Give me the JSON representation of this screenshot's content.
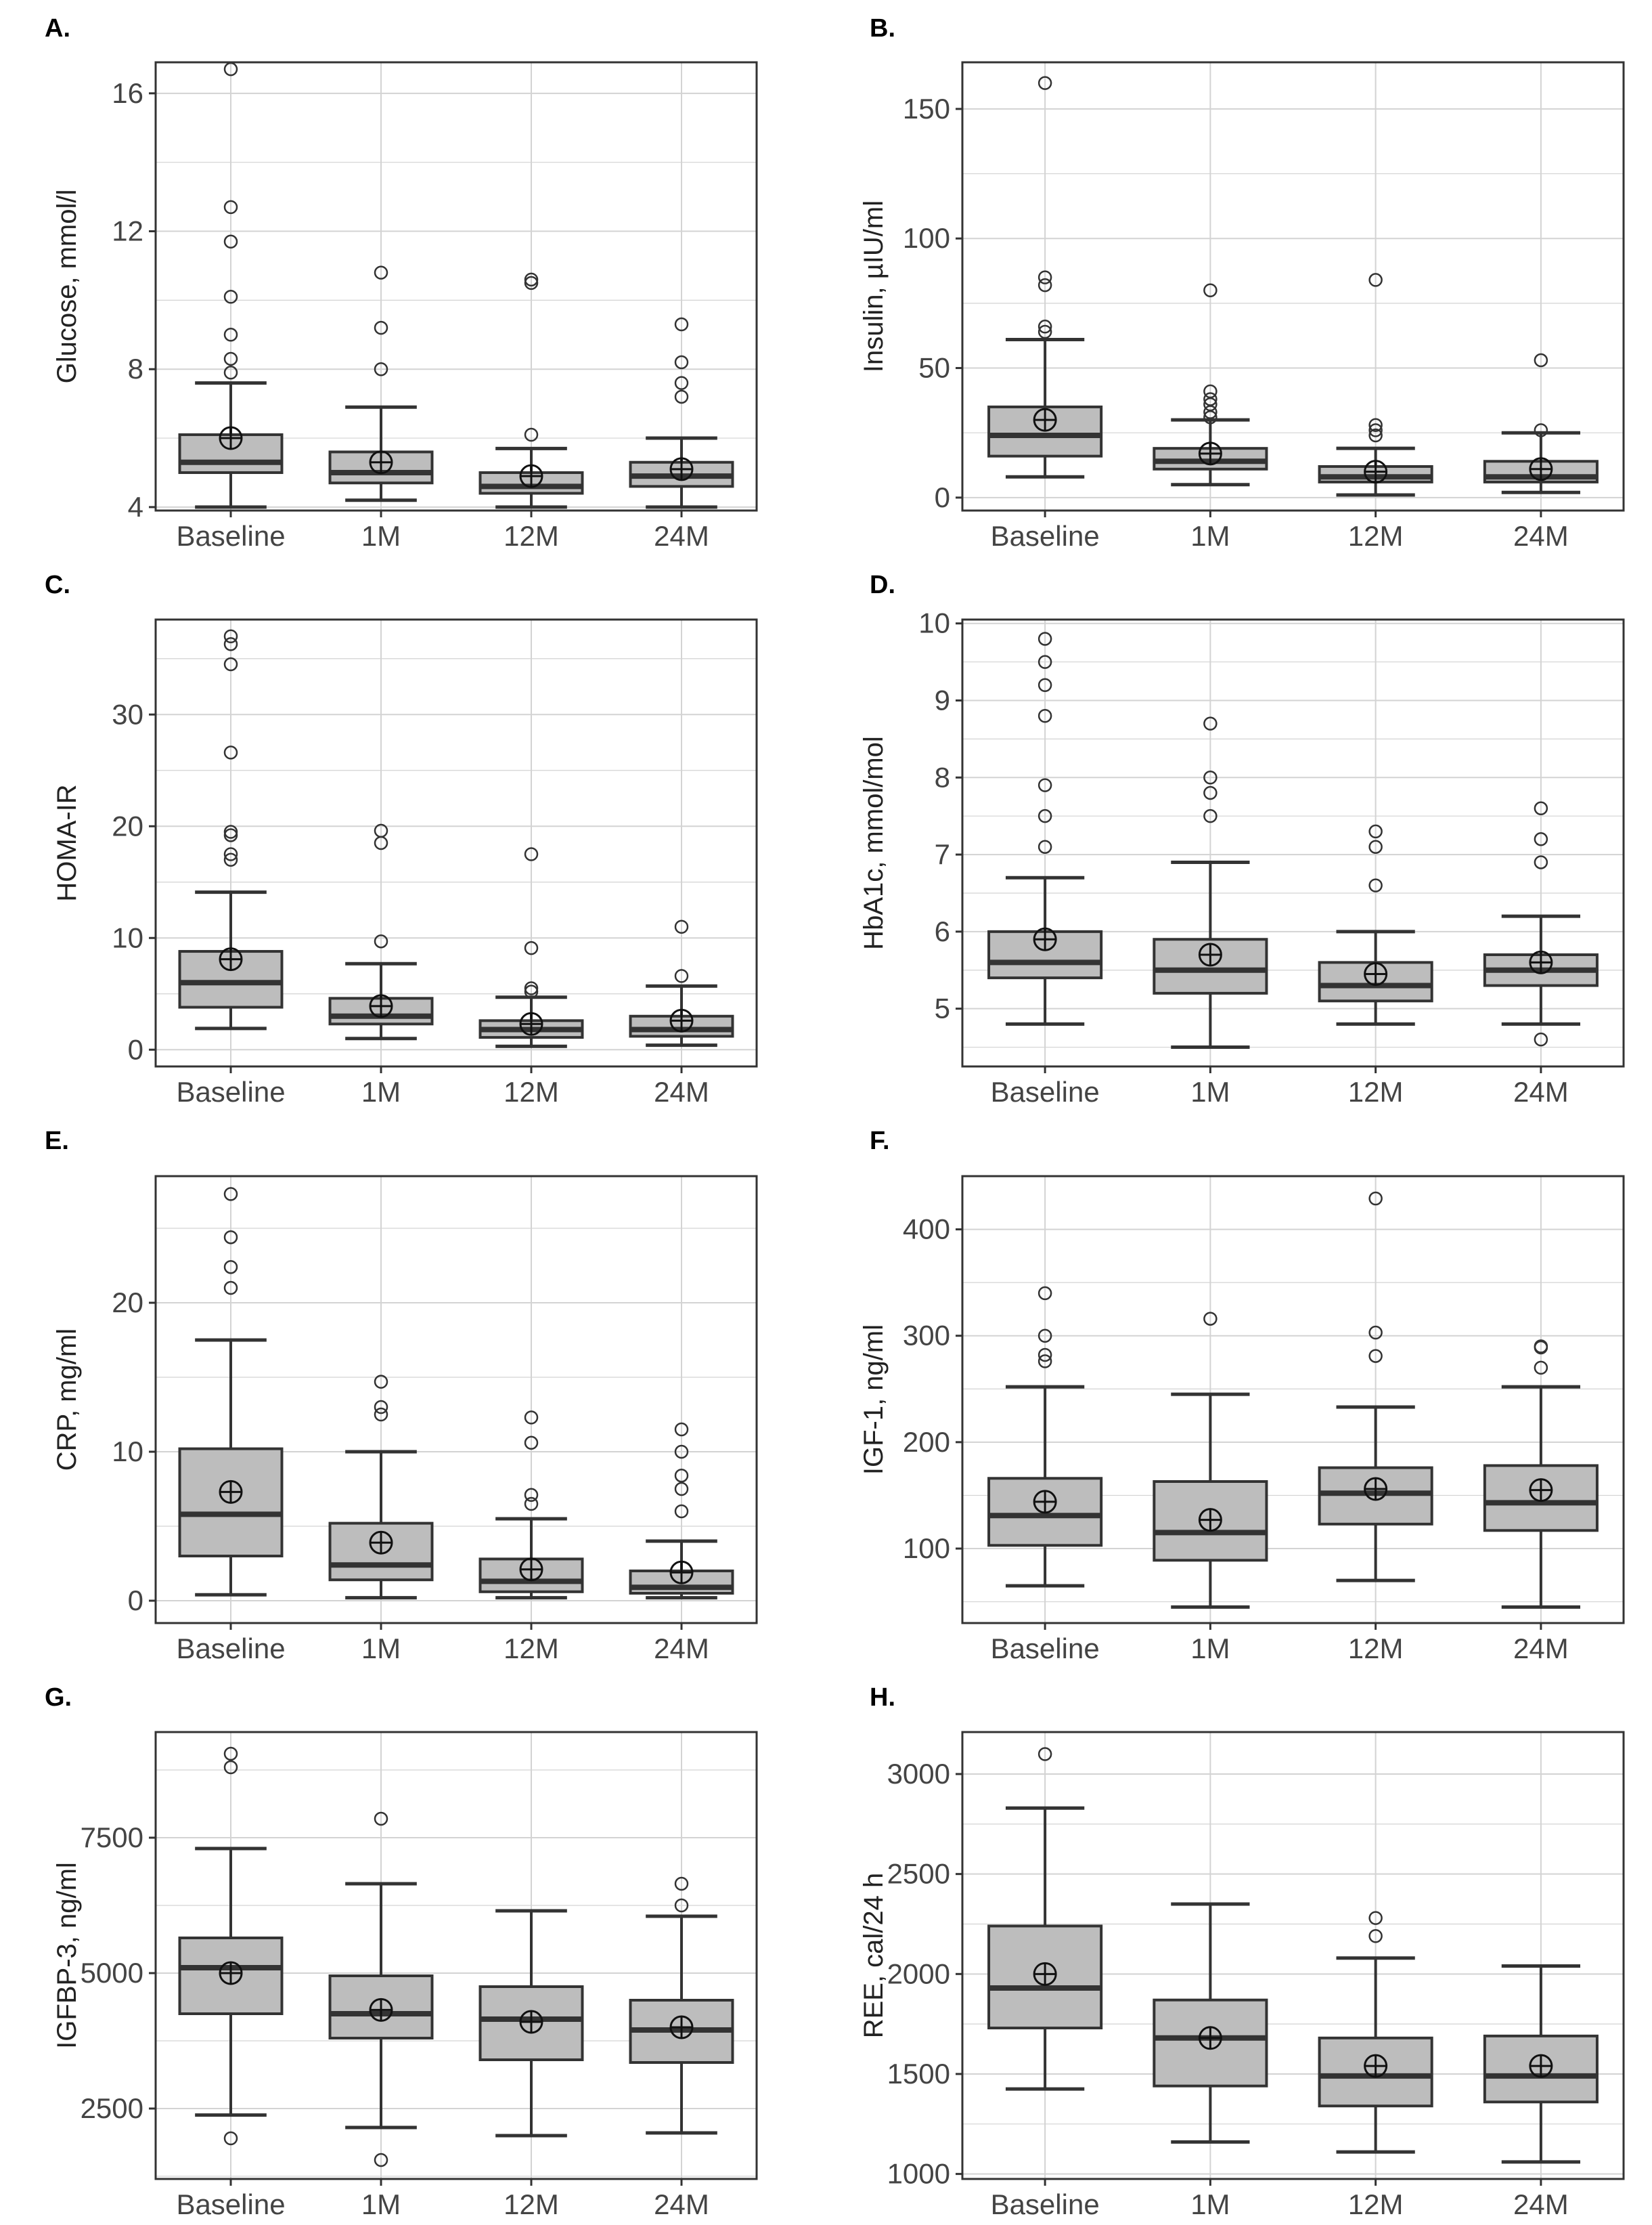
{
  "colors": {
    "box_fill": "#bdbdbd",
    "grid": "#d3d3d3",
    "line": "#333333",
    "background": "#ffffff"
  },
  "marker_legend": {
    "median": "thick bar",
    "mean": "circle-plus",
    "outlier": "open circle"
  },
  "chart_data": [
    {
      "type": "box",
      "panel": "A.",
      "ylabel": "Glucose, mmol/l",
      "categories": [
        "Baseline",
        "1M",
        "12M",
        "24M"
      ],
      "ylim": [
        3.9,
        16.9
      ],
      "yticks": [
        4,
        8,
        12,
        16
      ],
      "boxes": [
        {
          "whisker_low": 4.0,
          "q1": 5.0,
          "median": 5.3,
          "q3": 6.1,
          "whisker_high": 7.6,
          "mean": 6.0,
          "outliers": [
            7.9,
            8.3,
            9.0,
            10.1,
            11.7,
            12.7,
            16.7
          ]
        },
        {
          "whisker_low": 4.2,
          "q1": 4.7,
          "median": 5.0,
          "q3": 5.6,
          "whisker_high": 6.9,
          "mean": 5.3,
          "outliers": [
            8.0,
            9.2,
            10.8
          ]
        },
        {
          "whisker_low": 4.0,
          "q1": 4.4,
          "median": 4.6,
          "q3": 5.0,
          "whisker_high": 5.7,
          "mean": 4.9,
          "outliers": [
            6.1,
            10.5,
            10.6
          ]
        },
        {
          "whisker_low": 4.0,
          "q1": 4.6,
          "median": 4.9,
          "q3": 5.3,
          "whisker_high": 6.0,
          "mean": 5.1,
          "outliers": [
            7.2,
            7.6,
            8.2,
            9.3
          ]
        }
      ]
    },
    {
      "type": "box",
      "panel": "B.",
      "ylabel": "Insulin, µIU/ml",
      "categories": [
        "Baseline",
        "1M",
        "12M",
        "24M"
      ],
      "ylim": [
        -5,
        168
      ],
      "yticks": [
        0,
        50,
        100,
        150
      ],
      "boxes": [
        {
          "whisker_low": 8,
          "q1": 16,
          "median": 24,
          "q3": 35,
          "whisker_high": 61,
          "mean": 30,
          "outliers": [
            64,
            66,
            82,
            85,
            160
          ]
        },
        {
          "whisker_low": 5,
          "q1": 11,
          "median": 14,
          "q3": 19,
          "whisker_high": 30,
          "mean": 17,
          "outliers": [
            31,
            33,
            36,
            38,
            41,
            80
          ]
        },
        {
          "whisker_low": 1,
          "q1": 6,
          "median": 8,
          "q3": 12,
          "whisker_high": 19,
          "mean": 10,
          "outliers": [
            24,
            26,
            28,
            84
          ]
        },
        {
          "whisker_low": 2,
          "q1": 6,
          "median": 8,
          "q3": 14,
          "whisker_high": 25,
          "mean": 11,
          "outliers": [
            26,
            53
          ]
        }
      ]
    },
    {
      "type": "box",
      "panel": "C.",
      "ylabel": "HOMA-IR",
      "categories": [
        "Baseline",
        "1M",
        "12M",
        "24M"
      ],
      "ylim": [
        -1.5,
        38.5
      ],
      "yticks": [
        0,
        10,
        20,
        30
      ],
      "boxes": [
        {
          "whisker_low": 1.9,
          "q1": 3.8,
          "median": 6.0,
          "q3": 8.8,
          "whisker_high": 14.1,
          "mean": 8.1,
          "outliers": [
            17.0,
            17.5,
            19.2,
            19.5,
            26.6,
            34.5,
            36.3,
            37.0
          ]
        },
        {
          "whisker_low": 1.0,
          "q1": 2.3,
          "median": 3.0,
          "q3": 4.6,
          "whisker_high": 7.7,
          "mean": 3.9,
          "outliers": [
            9.7,
            18.5,
            19.6
          ]
        },
        {
          "whisker_low": 0.3,
          "q1": 1.1,
          "median": 1.8,
          "q3": 2.6,
          "whisker_high": 4.7,
          "mean": 2.3,
          "outliers": [
            5.2,
            5.5,
            9.1,
            17.5
          ]
        },
        {
          "whisker_low": 0.4,
          "q1": 1.2,
          "median": 1.8,
          "q3": 3.0,
          "whisker_high": 5.7,
          "mean": 2.6,
          "outliers": [
            6.6,
            11.0
          ]
        }
      ]
    },
    {
      "type": "box",
      "panel": "D.",
      "ylabel": "HbA1c, mmol/mol",
      "categories": [
        "Baseline",
        "1M",
        "12M",
        "24M"
      ],
      "ylim": [
        4.25,
        10.05
      ],
      "yticks": [
        5,
        6,
        7,
        8,
        9,
        10
      ],
      "boxes": [
        {
          "whisker_low": 4.8,
          "q1": 5.4,
          "median": 5.6,
          "q3": 6.0,
          "whisker_high": 6.7,
          "mean": 5.9,
          "outliers": [
            7.1,
            7.5,
            7.9,
            8.8,
            9.2,
            9.5,
            9.8
          ]
        },
        {
          "whisker_low": 4.5,
          "q1": 5.2,
          "median": 5.5,
          "q3": 5.9,
          "whisker_high": 6.9,
          "mean": 5.7,
          "outliers": [
            7.5,
            7.8,
            8.0,
            8.7
          ]
        },
        {
          "whisker_low": 4.8,
          "q1": 5.1,
          "median": 5.3,
          "q3": 5.6,
          "whisker_high": 6.0,
          "mean": 5.45,
          "outliers": [
            6.6,
            7.1,
            7.3
          ]
        },
        {
          "whisker_low": 4.8,
          "q1": 5.3,
          "median": 5.5,
          "q3": 5.7,
          "whisker_high": 6.2,
          "mean": 5.6,
          "outliers": [
            4.6,
            6.9,
            7.2,
            7.6
          ]
        }
      ]
    },
    {
      "type": "box",
      "panel": "E.",
      "ylabel": "CRP, mg/ml",
      "categories": [
        "Baseline",
        "1M",
        "12M",
        "24M"
      ],
      "ylim": [
        -1.5,
        28.5
      ],
      "yticks": [
        0,
        10,
        20
      ],
      "boxes": [
        {
          "whisker_low": 0.4,
          "q1": 3.0,
          "median": 5.8,
          "q3": 10.2,
          "whisker_high": 17.5,
          "mean": 7.3,
          "outliers": [
            21.0,
            22.4,
            24.4,
            27.3
          ]
        },
        {
          "whisker_low": 0.2,
          "q1": 1.4,
          "median": 2.4,
          "q3": 5.2,
          "whisker_high": 10.0,
          "mean": 3.9,
          "outliers": [
            12.5,
            13.0,
            14.7
          ]
        },
        {
          "whisker_low": 0.2,
          "q1": 0.6,
          "median": 1.3,
          "q3": 2.8,
          "whisker_high": 5.5,
          "mean": 2.1,
          "outliers": [
            6.5,
            7.1,
            10.6,
            12.3
          ]
        },
        {
          "whisker_low": 0.2,
          "q1": 0.5,
          "median": 0.9,
          "q3": 2.0,
          "whisker_high": 4.0,
          "mean": 1.9,
          "outliers": [
            6.0,
            7.5,
            8.4,
            10.0,
            11.5
          ]
        }
      ]
    },
    {
      "type": "box",
      "panel": "F.",
      "ylabel": "IGF-1, ng/ml",
      "categories": [
        "Baseline",
        "1M",
        "12M",
        "24M"
      ],
      "ylim": [
        30,
        450
      ],
      "yticks": [
        100,
        200,
        300,
        400
      ],
      "boxes": [
        {
          "whisker_low": 65,
          "q1": 103,
          "median": 131,
          "q3": 166,
          "whisker_high": 252,
          "mean": 144,
          "outliers": [
            276,
            282,
            300,
            340
          ]
        },
        {
          "whisker_low": 45,
          "q1": 89,
          "median": 115,
          "q3": 163,
          "whisker_high": 245,
          "mean": 127,
          "outliers": [
            316
          ]
        },
        {
          "whisker_low": 70,
          "q1": 123,
          "median": 152,
          "q3": 176,
          "whisker_high": 233,
          "mean": 156,
          "outliers": [
            281,
            303,
            429
          ]
        },
        {
          "whisker_low": 45,
          "q1": 117,
          "median": 143,
          "q3": 178,
          "whisker_high": 252,
          "mean": 155,
          "outliers": [
            270,
            289,
            290
          ]
        }
      ]
    },
    {
      "type": "box",
      "panel": "G.",
      "ylabel": "IGFBP-3, ng/ml",
      "categories": [
        "Baseline",
        "1M",
        "12M",
        "24M"
      ],
      "ylim": [
        1200,
        9450
      ],
      "yticks": [
        2500,
        5000,
        7500
      ],
      "boxes": [
        {
          "whisker_low": 2380,
          "q1": 4250,
          "median": 5100,
          "q3": 5650,
          "whisker_high": 7300,
          "mean": 5000,
          "outliers": [
            1950,
            8800,
            9050
          ]
        },
        {
          "whisker_low": 2150,
          "q1": 3800,
          "median": 4250,
          "q3": 4950,
          "whisker_high": 6650,
          "mean": 4320,
          "outliers": [
            1550,
            7850
          ]
        },
        {
          "whisker_low": 2000,
          "q1": 3400,
          "median": 4150,
          "q3": 4750,
          "whisker_high": 6150,
          "mean": 4100,
          "outliers": []
        },
        {
          "whisker_low": 2050,
          "q1": 3350,
          "median": 3950,
          "q3": 4500,
          "whisker_high": 6050,
          "mean": 4000,
          "outliers": [
            6250,
            6650
          ]
        }
      ]
    },
    {
      "type": "box",
      "panel": "H.",
      "ylabel": "REE, cal/24 h",
      "categories": [
        "Baseline",
        "1M",
        "12M",
        "24M"
      ],
      "ylim": [
        975,
        3210
      ],
      "yticks": [
        1000,
        1500,
        2000,
        2500,
        3000
      ],
      "boxes": [
        {
          "whisker_low": 1425,
          "q1": 1730,
          "median": 1930,
          "q3": 2240,
          "whisker_high": 2830,
          "mean": 2000,
          "outliers": [
            3100
          ]
        },
        {
          "whisker_low": 1160,
          "q1": 1440,
          "median": 1680,
          "q3": 1870,
          "whisker_high": 2350,
          "mean": 1680,
          "outliers": []
        },
        {
          "whisker_low": 1110,
          "q1": 1340,
          "median": 1490,
          "q3": 1680,
          "whisker_high": 2080,
          "mean": 1540,
          "outliers": [
            2190,
            2280
          ]
        },
        {
          "whisker_low": 1060,
          "q1": 1360,
          "median": 1490,
          "q3": 1690,
          "whisker_high": 2040,
          "mean": 1540,
          "outliers": []
        }
      ]
    }
  ]
}
